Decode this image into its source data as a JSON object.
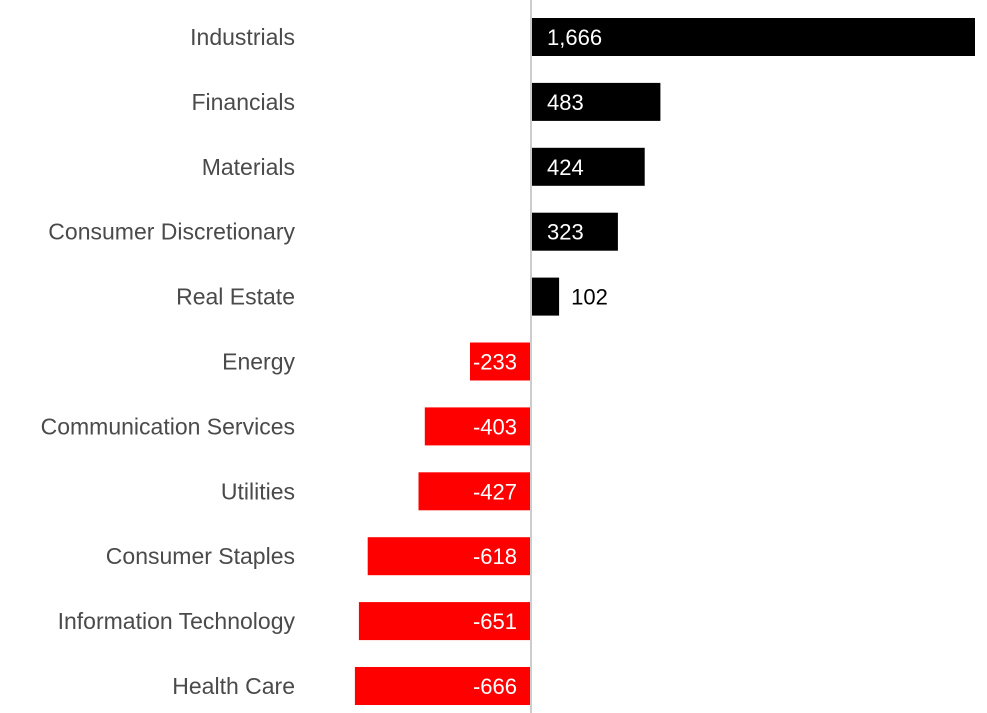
{
  "chart_data": {
    "type": "bar",
    "orientation": "horizontal",
    "categories": [
      "Industrials",
      "Financials",
      "Materials",
      "Consumer Discretionary",
      "Real Estate",
      "Energy",
      "Communication Services",
      "Utilities",
      "Consumer Staples",
      "Information Technology",
      "Health Care"
    ],
    "values": [
      1666,
      483,
      424,
      323,
      102,
      -233,
      -403,
      -427,
      -618,
      -651,
      -666
    ],
    "value_labels": [
      "1,666",
      "483",
      "424",
      "323",
      "102",
      "-233",
      "-403",
      "-427",
      "-618",
      "-651",
      "-666"
    ],
    "title": "",
    "xlabel": "",
    "ylabel": "",
    "xlim": [
      -666,
      1666
    ],
    "grid": false,
    "legend": "none",
    "colors": {
      "positive": "#000000",
      "negative": "#ff0000",
      "axis": "#cccccc",
      "category_text": "#4a4a4a",
      "label_inside": "#ffffff",
      "label_outside": "#000000"
    }
  }
}
